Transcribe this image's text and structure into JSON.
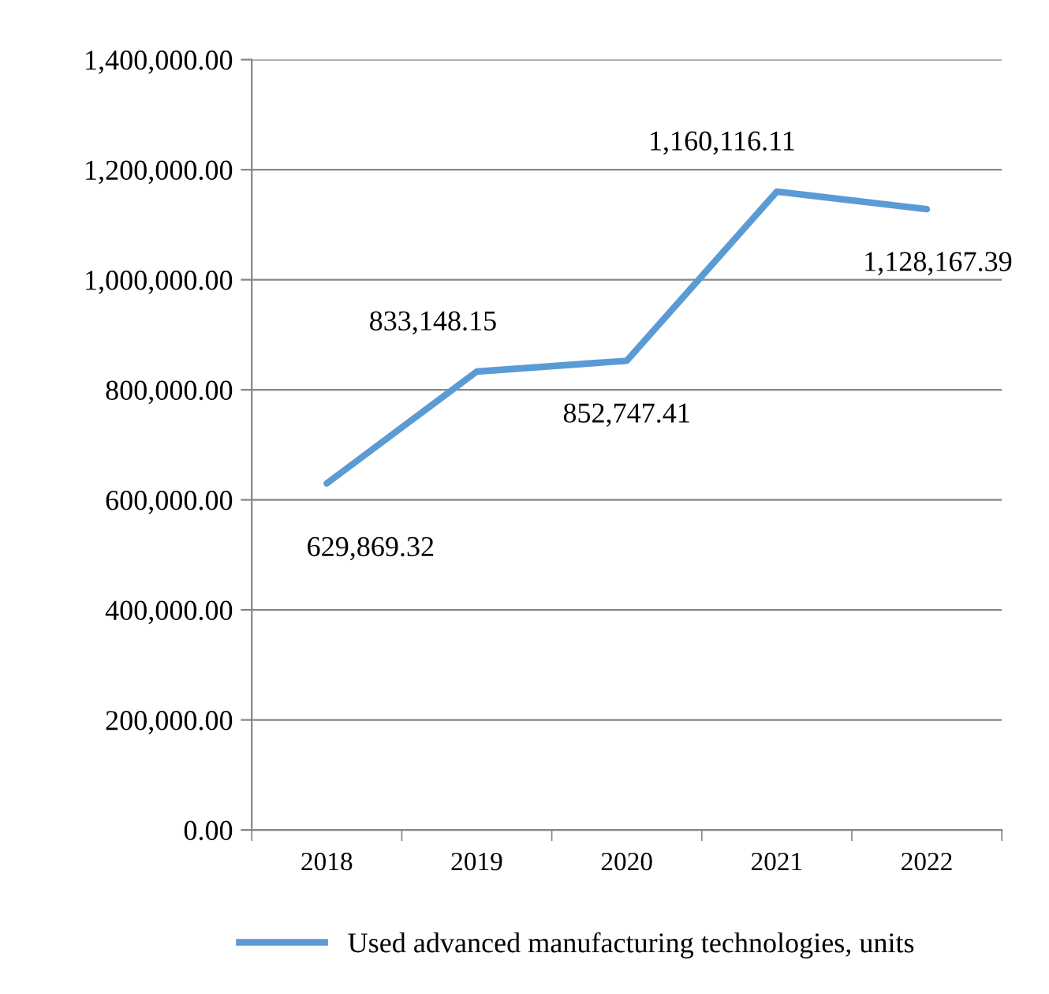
{
  "chart_data": {
    "type": "line",
    "categories": [
      "2018",
      "2019",
      "2020",
      "2021",
      "2022"
    ],
    "series": [
      {
        "name": "Used advanced manufacturing technologies, units",
        "color": "#5b9bd5",
        "values": [
          629869.32,
          833148.15,
          852747.41,
          1160116.11,
          1128167.39
        ]
      }
    ],
    "value_labels": [
      "629,869.32",
      "833,148.15",
      "852,747.41",
      "1,160,116.11",
      "1,128,167.39"
    ],
    "ylim": [
      0,
      1400000
    ],
    "yticks": [
      {
        "value": 0,
        "label": "0.00"
      },
      {
        "value": 200000,
        "label": "200,000.00"
      },
      {
        "value": 400000,
        "label": "400,000.00"
      },
      {
        "value": 600000,
        "label": "600,000.00"
      },
      {
        "value": 800000,
        "label": "800,000.00"
      },
      {
        "value": 1000000,
        "label": "1,000,000.00"
      },
      {
        "value": 1200000,
        "label": "1,200,000.00"
      },
      {
        "value": 1400000,
        "label": "1,400,000.00"
      }
    ],
    "grid": "y",
    "legend": "bottom",
    "marker": "none",
    "line_style": "solid"
  }
}
